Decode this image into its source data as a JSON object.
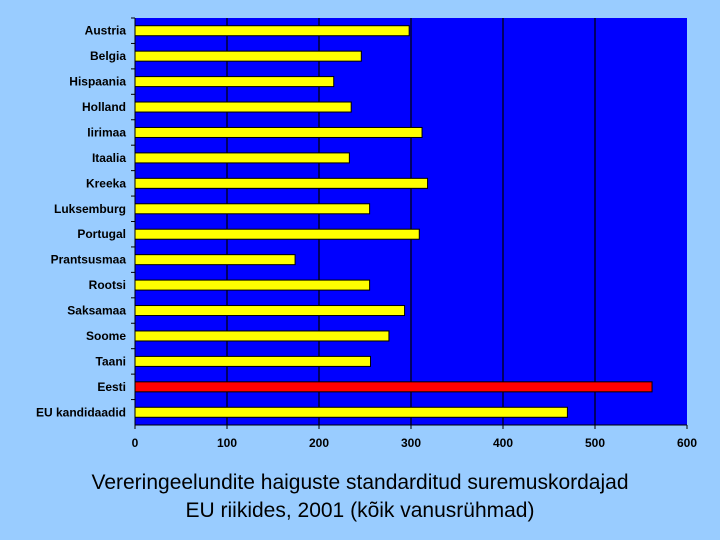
{
  "colors": {
    "slide_background": "#99ccff",
    "plot_background": "#0000ff",
    "bar_default": "#ffff00",
    "bar_highlight": "#ff0000",
    "bar_outline": "#000000",
    "gridline": "#000000"
  },
  "caption": {
    "line1": "Vereringeelundite haiguste standarditud suremuskordajad",
    "line2": "EU riikides, 2001 (kõik vanusrühmad)"
  },
  "chart_data": {
    "type": "bar",
    "orientation": "horizontal",
    "title": "",
    "xlabel": "",
    "ylabel": "",
    "categories": [
      "Austria",
      "Belgia",
      "Hispaania",
      "Holland",
      "Iirimaa",
      "Itaalia",
      "Kreeka",
      "Luksemburg",
      "Portugal",
      "Prantsusmaa",
      "Rootsi",
      "Saksamaa",
      "Soome",
      "Taani",
      "Eesti",
      "EU kandidaadid"
    ],
    "values": [
      298,
      246,
      216,
      235,
      312,
      233,
      318,
      255,
      309,
      174,
      255,
      293,
      276,
      256,
      562,
      470
    ],
    "highlight_category": "Eesti",
    "xlim": [
      0,
      600
    ],
    "xticks": [
      0,
      100,
      200,
      300,
      400,
      500,
      600
    ],
    "grid": "vertical lines every 100",
    "legend": "none"
  }
}
